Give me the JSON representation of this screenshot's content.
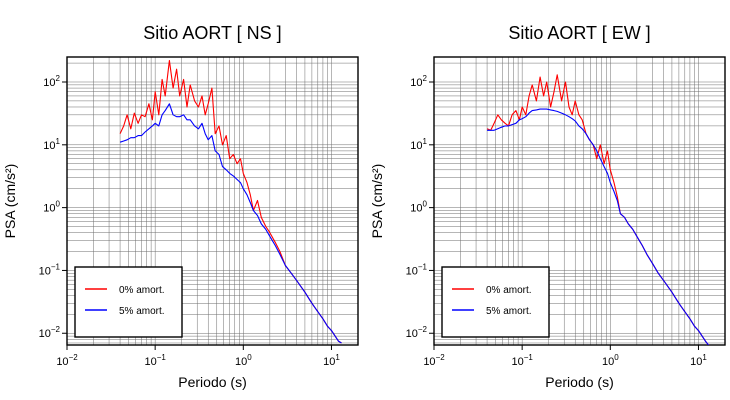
{
  "chart_data": [
    {
      "type": "line",
      "title": "Sitio AORT [ NS ]",
      "xlabel": "Periodo (s)",
      "ylabel": "PSA (cm/s²)",
      "xscale": "log",
      "yscale": "log",
      "xlim": [
        0.01,
        20
      ],
      "ylim": [
        0.0065,
        250
      ],
      "grid": true,
      "legend_position": "bottom-left",
      "x_ticks": [
        {
          "base": "10",
          "exp": "−2"
        },
        {
          "base": "10",
          "exp": "−1"
        },
        {
          "base": "10",
          "exp": "0"
        },
        {
          "base": "10",
          "exp": "1"
        }
      ],
      "y_ticks": [
        {
          "base": "10",
          "exp": "−2"
        },
        {
          "base": "10",
          "exp": "−1"
        },
        {
          "base": "10",
          "exp": "0"
        },
        {
          "base": "10",
          "exp": "1"
        },
        {
          "base": "10",
          "exp": "2"
        }
      ],
      "series": [
        {
          "name": "0% amort.",
          "color": "#ff0000",
          "x": [
            0.04,
            0.044,
            0.048,
            0.053,
            0.058,
            0.064,
            0.07,
            0.077,
            0.085,
            0.093,
            0.1,
            0.11,
            0.12,
            0.13,
            0.145,
            0.16,
            0.175,
            0.19,
            0.21,
            0.23,
            0.25,
            0.28,
            0.31,
            0.34,
            0.37,
            0.4,
            0.44,
            0.48,
            0.53,
            0.58,
            0.64,
            0.7,
            0.77,
            0.85,
            0.93,
            1.0,
            1.1,
            1.2,
            1.3,
            1.45,
            1.6,
            1.8,
            2.0,
            2.3,
            2.6,
            3.0,
            3.5,
            4.0,
            5.0,
            6.0,
            7.0,
            8.0,
            9.0,
            10.0,
            11.0,
            12.0,
            13.0
          ],
          "y": [
            15,
            20,
            30,
            18,
            32,
            22,
            30,
            28,
            45,
            25,
            70,
            30,
            110,
            60,
            220,
            80,
            160,
            60,
            110,
            40,
            90,
            50,
            40,
            60,
            30,
            45,
            80,
            15,
            20,
            10,
            14,
            6,
            7,
            5,
            6,
            3.5,
            2.5,
            1.6,
            0.9,
            1.3,
            0.7,
            0.5,
            0.4,
            0.28,
            0.2,
            0.12,
            0.09,
            0.07,
            0.045,
            0.03,
            0.022,
            0.017,
            0.013,
            0.011,
            0.009,
            0.0075,
            0.007
          ]
        },
        {
          "name": "5% amort.",
          "color": "#0000ff",
          "x": [
            0.04,
            0.044,
            0.048,
            0.053,
            0.058,
            0.064,
            0.07,
            0.077,
            0.085,
            0.093,
            0.1,
            0.11,
            0.12,
            0.13,
            0.145,
            0.16,
            0.175,
            0.19,
            0.21,
            0.23,
            0.25,
            0.28,
            0.31,
            0.34,
            0.37,
            0.4,
            0.44,
            0.48,
            0.53,
            0.58,
            0.64,
            0.7,
            0.77,
            0.85,
            0.93,
            1.0,
            1.1,
            1.2,
            1.3,
            1.45,
            1.6,
            1.8,
            2.0,
            2.3,
            2.6,
            3.0,
            3.5,
            4.0,
            5.0,
            6.0,
            7.0,
            8.0,
            9.0,
            10.0,
            11.0,
            12.0,
            13.0
          ],
          "y": [
            11,
            11.5,
            12,
            13,
            13,
            14,
            14,
            16,
            18,
            20,
            22,
            20,
            30,
            35,
            45,
            30,
            28,
            28,
            30,
            25,
            25,
            20,
            18,
            22,
            15,
            12,
            14,
            8,
            7,
            4.5,
            4,
            3.5,
            3.2,
            2.8,
            2.5,
            2.0,
            1.6,
            1.2,
            0.9,
            0.75,
            0.55,
            0.45,
            0.35,
            0.25,
            0.18,
            0.12,
            0.09,
            0.07,
            0.045,
            0.03,
            0.022,
            0.017,
            0.013,
            0.011,
            0.009,
            0.0075,
            0.007
          ]
        }
      ]
    },
    {
      "type": "line",
      "title": "Sitio AORT [ EW ]",
      "xlabel": "Periodo (s)",
      "ylabel": "PSA (cm/s²)",
      "xscale": "log",
      "yscale": "log",
      "xlim": [
        0.01,
        20
      ],
      "ylim": [
        0.0065,
        250
      ],
      "grid": true,
      "legend_position": "bottom-left",
      "x_ticks": [
        {
          "base": "10",
          "exp": "−2"
        },
        {
          "base": "10",
          "exp": "−1"
        },
        {
          "base": "10",
          "exp": "0"
        },
        {
          "base": "10",
          "exp": "1"
        }
      ],
      "y_ticks": [
        {
          "base": "10",
          "exp": "−2"
        },
        {
          "base": "10",
          "exp": "−1"
        },
        {
          "base": "10",
          "exp": "0"
        },
        {
          "base": "10",
          "exp": "1"
        },
        {
          "base": "10",
          "exp": "2"
        }
      ],
      "series": [
        {
          "name": "0% amort.",
          "color": "#ff0000",
          "x": [
            0.04,
            0.044,
            0.048,
            0.053,
            0.058,
            0.064,
            0.07,
            0.077,
            0.085,
            0.093,
            0.1,
            0.11,
            0.12,
            0.13,
            0.145,
            0.16,
            0.175,
            0.19,
            0.21,
            0.23,
            0.25,
            0.28,
            0.31,
            0.34,
            0.37,
            0.4,
            0.44,
            0.48,
            0.53,
            0.58,
            0.64,
            0.7,
            0.77,
            0.85,
            0.93,
            1.0,
            1.1,
            1.2,
            1.3,
            1.45,
            1.6,
            1.8,
            2.0,
            2.3,
            2.6,
            3.0,
            3.5,
            4.0,
            5.0,
            6.0,
            7.0,
            8.0,
            9.0,
            10.0,
            11.0,
            12.0,
            13.0,
            14.0
          ],
          "y": [
            18,
            17,
            22,
            30,
            25,
            22,
            20,
            30,
            35,
            25,
            40,
            30,
            60,
            90,
            50,
            120,
            60,
            100,
            40,
            70,
            130,
            50,
            100,
            40,
            30,
            50,
            30,
            25,
            15,
            12,
            10,
            6,
            10,
            5,
            8,
            4,
            2.5,
            1.5,
            0.8,
            0.7,
            0.55,
            0.45,
            0.35,
            0.25,
            0.18,
            0.13,
            0.09,
            0.07,
            0.045,
            0.03,
            0.022,
            0.017,
            0.013,
            0.011,
            0.009,
            0.0075,
            0.0065,
            0.006
          ]
        },
        {
          "name": "5% amort.",
          "color": "#0000ff",
          "x": [
            0.04,
            0.044,
            0.048,
            0.053,
            0.058,
            0.064,
            0.07,
            0.077,
            0.085,
            0.093,
            0.1,
            0.11,
            0.12,
            0.13,
            0.145,
            0.16,
            0.175,
            0.19,
            0.21,
            0.23,
            0.25,
            0.28,
            0.31,
            0.34,
            0.37,
            0.4,
            0.44,
            0.48,
            0.53,
            0.58,
            0.64,
            0.7,
            0.77,
            0.85,
            0.93,
            1.0,
            1.1,
            1.2,
            1.3,
            1.45,
            1.6,
            1.8,
            2.0,
            2.3,
            2.6,
            3.0,
            3.5,
            4.0,
            5.0,
            6.0,
            7.0,
            8.0,
            9.0,
            10.0,
            11.0,
            12.0,
            13.0,
            14.0
          ],
          "y": [
            17,
            17,
            17,
            18,
            19,
            20,
            20,
            21,
            22,
            25,
            26,
            28,
            32,
            35,
            36,
            37,
            37,
            37,
            36,
            35,
            34,
            32,
            30,
            28,
            26,
            24,
            20,
            18,
            15,
            12,
            10,
            8,
            6,
            4.5,
            3.5,
            2.5,
            1.8,
            1.3,
            0.8,
            0.7,
            0.55,
            0.45,
            0.35,
            0.25,
            0.18,
            0.13,
            0.09,
            0.07,
            0.045,
            0.03,
            0.022,
            0.017,
            0.013,
            0.011,
            0.009,
            0.0075,
            0.0065,
            0.006
          ]
        }
      ]
    }
  ]
}
